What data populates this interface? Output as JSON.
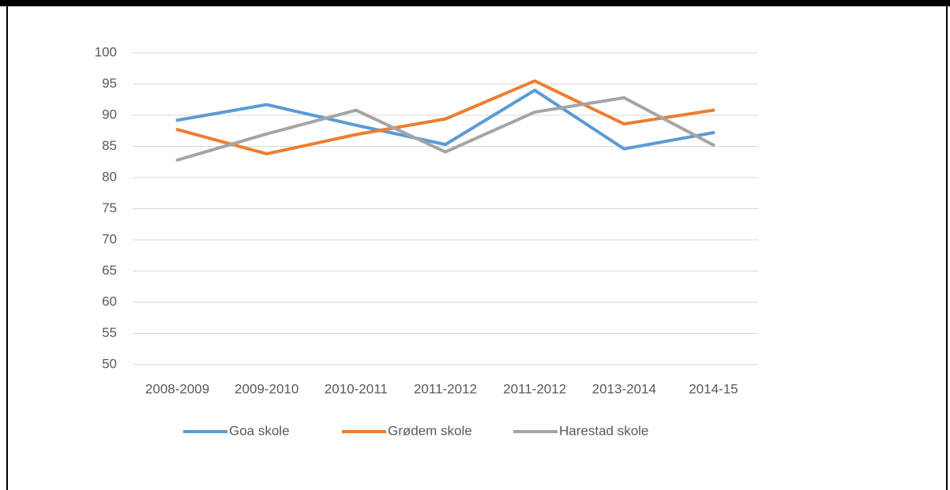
{
  "chart_data": {
    "type": "line",
    "categories": [
      "2008-2009",
      "2009-2010",
      "2010-2011",
      "2011-2012",
      "2011-2012",
      "2013-2014",
      "2014-15"
    ],
    "series": [
      {
        "name": "Goa skole",
        "color": "#5b9bd5",
        "values": [
          89.2,
          91.7,
          88.4,
          85.3,
          94.0,
          84.6,
          87.2
        ]
      },
      {
        "name": "Grødem skole",
        "color": "#ed7d31",
        "values": [
          87.7,
          83.8,
          86.9,
          89.4,
          95.5,
          88.6,
          90.8
        ]
      },
      {
        "name": "Harestad skole",
        "color": "#a5a5a5",
        "values": [
          82.8,
          87.0,
          90.8,
          84.1,
          90.5,
          92.8,
          85.2
        ]
      }
    ],
    "ylim": [
      50,
      100
    ],
    "yticks": [
      50,
      55,
      60,
      65,
      70,
      75,
      80,
      85,
      90,
      95,
      100
    ],
    "grid": true,
    "legend": "bottom"
  }
}
